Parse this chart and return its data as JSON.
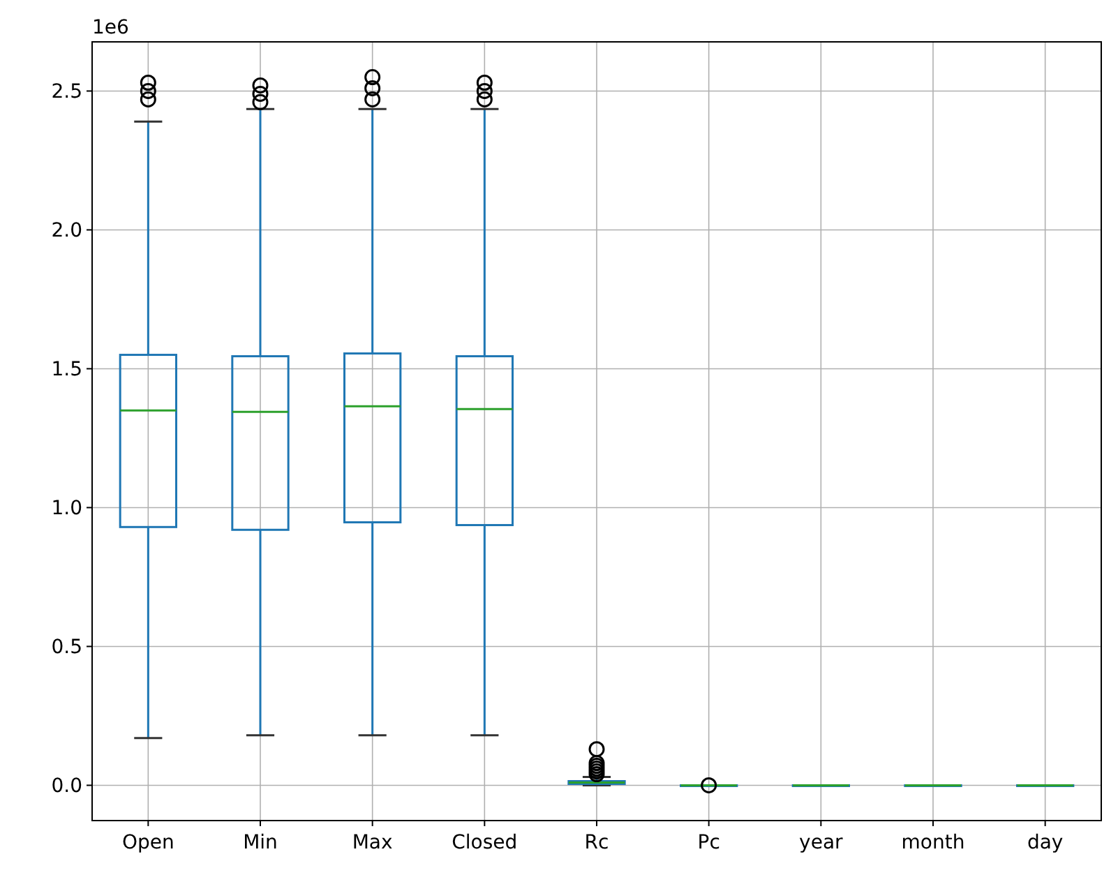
{
  "chart_data": {
    "type": "box",
    "ylabel": "1e6",
    "categories": [
      "Open",
      "Min",
      "Max",
      "Closed",
      "Rc",
      "Pc",
      "year",
      "month",
      "day"
    ],
    "boxes": [
      {
        "low": 0.17,
        "q1": 0.93,
        "median": 1.35,
        "q3": 1.55,
        "high": 2.39,
        "outliers": [
          2.47,
          2.5,
          2.53
        ]
      },
      {
        "low": 0.18,
        "q1": 0.92,
        "median": 1.345,
        "q3": 1.545,
        "high": 2.435,
        "outliers": [
          2.46,
          2.49,
          2.52
        ]
      },
      {
        "low": 0.18,
        "q1": 0.947,
        "median": 1.365,
        "q3": 1.555,
        "high": 2.435,
        "outliers": [
          2.47,
          2.51,
          2.55
        ]
      },
      {
        "low": 0.18,
        "q1": 0.937,
        "median": 1.355,
        "q3": 1.545,
        "high": 2.435,
        "outliers": [
          2.47,
          2.5,
          2.53
        ]
      },
      {
        "low": 0,
        "q1": 0.005,
        "median": 0.01,
        "q3": 0.015,
        "high": 0.03,
        "outliers": [
          0.04,
          0.05,
          0.06,
          0.07,
          0.08,
          0.13
        ]
      },
      {
        "low": 0,
        "q1": 0,
        "median": 0,
        "q3": 0,
        "high": 0,
        "outliers": [
          0
        ]
      },
      {
        "low": 0,
        "q1": 0,
        "median": 0,
        "q3": 0,
        "high": 0
      },
      {
        "low": 0,
        "q1": 0,
        "median": 0,
        "q3": 0,
        "high": 0
      },
      {
        "low": 0,
        "q1": 0,
        "median": 0,
        "q3": 0,
        "high": 0
      }
    ],
    "color": "#1f77b4",
    "ylim": [
      -0.127,
      2.677
    ],
    "yticks": [
      {
        "value": 0,
        "label": "0.0"
      },
      {
        "value": 0.5,
        "label": "0.5"
      },
      {
        "value": 1,
        "label": "1.0"
      },
      {
        "value": 1.5,
        "label": "1.5"
      },
      {
        "value": 2,
        "label": "2.0"
      },
      {
        "value": 2.5,
        "label": "2.5"
      }
    ],
    "grid": true
  }
}
